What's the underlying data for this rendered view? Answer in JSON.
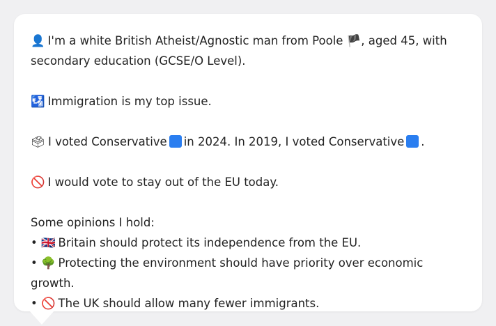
{
  "profile": {
    "icon": "person-silhouette-icon",
    "intro_a": "I'm a white British Atheist/Agnostic man from Poole",
    "flag_icon": "england-flag-icon",
    "intro_b": ", aged 45, with secondary education (GCSE/O Level).",
    "top_issue_icon": "passport-control-icon",
    "top_issue": "Immigration is my top issue.",
    "vote_icon": "ballot-box-icon",
    "vote_a": "I voted Conservative",
    "vote_b": "in 2024. In 2019, I voted Conservative",
    "vote_c": ".",
    "party_color": "#2a7ef0",
    "eu_icon": "prohibited-icon",
    "eu_stance": "I would vote to stay out of the EU today."
  },
  "opinions": {
    "heading": "Some opinions I hold:",
    "items": [
      {
        "icon": "uk-flag-icon",
        "glyph": "🇬🇧",
        "text": "Britain should protect its independence from the EU."
      },
      {
        "icon": "tree-icon",
        "glyph": "🌳",
        "text": "Protecting the environment should have priority over economic growth."
      },
      {
        "icon": "prohibited-icon",
        "glyph": "🚫",
        "text": "The UK should allow many fewer immigrants."
      }
    ]
  }
}
